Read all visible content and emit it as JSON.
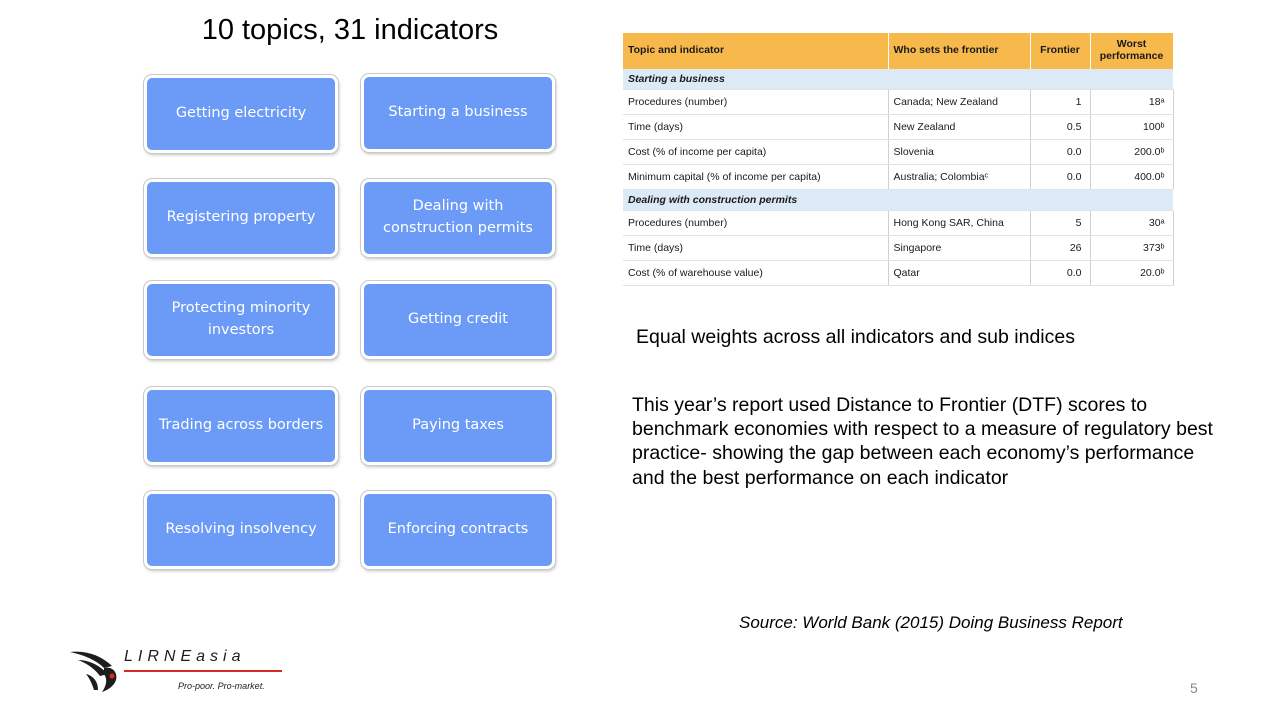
{
  "title": "10 topics, 31 indicators",
  "topics": [
    "Getting electricity",
    "Starting a business",
    "Registering property",
    "Dealing with construction permits",
    "Protecting minority investors",
    "Getting credit",
    "Trading across borders",
    "Paying taxes",
    "Resolving insolvency",
    "Enforcing contracts"
  ],
  "table": {
    "headers": [
      "Topic and indicator",
      "Who sets the frontier",
      "Frontier",
      "Worst performance"
    ],
    "sections": [
      {
        "name": "Starting a business",
        "rows": [
          [
            "Procedures (number)",
            "Canada; New Zealand",
            "1",
            "18ᵃ"
          ],
          [
            "Time (days)",
            "New Zealand",
            "0.5",
            "100ᵇ"
          ],
          [
            "Cost (% of income per capita)",
            "Slovenia",
            "0.0",
            "200.0ᵇ"
          ],
          [
            "Minimum capital (% of income per capita)",
            "Australia; Colombiaᶜ",
            "0.0",
            "400.0ᵇ"
          ]
        ]
      },
      {
        "name": "Dealing with construction permits",
        "rows": [
          [
            "Procedures (number)",
            "Hong Kong SAR, China",
            "5",
            "30ᵃ"
          ],
          [
            "Time (days)",
            "Singapore",
            "26",
            "373ᵇ"
          ],
          [
            "Cost (% of warehouse value)",
            "Qatar",
            "0.0",
            "20.0ᵇ"
          ]
        ]
      }
    ]
  },
  "weights_note": "Equal weights across all indicators and sub indices",
  "dtf_note": "This year’s report used Distance to Frontier (DTF) scores to benchmark economies with respect to a measure of regulatory best practice- showing the gap between each economy’s performance and the best performance on each indicator",
  "source": "Source: World Bank (2015) Doing Business Report",
  "logo": {
    "name": "LIRNEasia",
    "display": "LIRNEasia",
    "tagline": "Pro-poor. Pro-market."
  },
  "page_number": "5",
  "colors": {
    "topic_box": "#6b9bf6",
    "table_header": "#f7b84c",
    "table_section": "#dce9f7",
    "logo_accent": "#d62a24"
  }
}
